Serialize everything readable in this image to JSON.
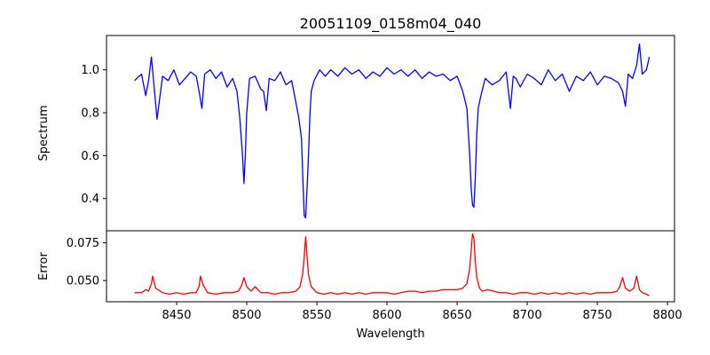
{
  "chart_data": [
    {
      "type": "line",
      "title": "20051109_0158m04_040",
      "xlabel": "",
      "ylabel": "Spectrum",
      "xlim": [
        8400,
        8805
      ],
      "ylim": [
        0.25,
        1.16
      ],
      "yticks": [
        0.4,
        0.6,
        0.8,
        1.0
      ],
      "ytick_labels": [
        "0.4",
        "0.6",
        "0.8",
        "1.0"
      ],
      "color": "#0000ff",
      "series": [
        {
          "x": [
            8420,
            8425,
            8428,
            8430,
            8432,
            8434,
            8436,
            8440,
            8444,
            8448,
            8452,
            8456,
            8460,
            8464,
            8466,
            8468,
            8470,
            8474,
            8478,
            8482,
            8486,
            8490,
            8493,
            8495,
            8497,
            8498,
            8499,
            8500,
            8502,
            8506,
            8510,
            8512,
            8514,
            8516,
            8520,
            8524,
            8528,
            8532,
            8535,
            8537,
            8539,
            8540,
            8541,
            8542,
            8543,
            8544,
            8545,
            8546,
            8548,
            8552,
            8556,
            8560,
            8565,
            8570,
            8575,
            8580,
            8585,
            8590,
            8595,
            8600,
            8605,
            8610,
            8615,
            8620,
            8625,
            8630,
            8635,
            8640,
            8645,
            8650,
            8654,
            8657,
            8659,
            8660,
            8661,
            8662,
            8663,
            8664,
            8665,
            8667,
            8670,
            8675,
            8680,
            8685,
            8688,
            8690,
            8692,
            8695,
            8700,
            8705,
            8710,
            8715,
            8720,
            8725,
            8730,
            8735,
            8740,
            8745,
            8750,
            8755,
            8760,
            8765,
            8768,
            8770,
            8772,
            8775,
            8778,
            8780,
            8782,
            8785,
            8787
          ],
          "y": [
            0.95,
            0.98,
            0.88,
            0.95,
            1.06,
            0.92,
            0.77,
            0.97,
            0.95,
            1.0,
            0.93,
            0.96,
            0.99,
            0.97,
            0.9,
            0.82,
            0.98,
            1.0,
            0.96,
            0.99,
            0.92,
            0.96,
            0.9,
            0.78,
            0.6,
            0.47,
            0.6,
            0.8,
            0.96,
            0.97,
            0.91,
            0.9,
            0.81,
            0.96,
            0.95,
            0.99,
            0.93,
            0.95,
            0.85,
            0.78,
            0.68,
            0.5,
            0.32,
            0.31,
            0.45,
            0.6,
            0.78,
            0.9,
            0.95,
            1.0,
            0.97,
            1.0,
            0.97,
            1.01,
            0.98,
            1.0,
            0.96,
            0.99,
            0.97,
            1.01,
            0.98,
            1.0,
            0.97,
            1.0,
            0.96,
            0.99,
            0.97,
            0.98,
            0.95,
            0.97,
            0.9,
            0.82,
            0.6,
            0.45,
            0.37,
            0.36,
            0.5,
            0.7,
            0.82,
            0.88,
            0.96,
            0.93,
            0.95,
            0.99,
            0.82,
            0.97,
            0.96,
            0.92,
            0.98,
            0.96,
            0.93,
            1.0,
            0.95,
            0.98,
            0.9,
            0.97,
            0.95,
            0.99,
            0.93,
            0.97,
            0.96,
            0.94,
            0.9,
            0.83,
            0.98,
            0.96,
            1.02,
            1.12,
            0.98,
            1.0,
            1.06
          ]
        }
      ]
    },
    {
      "type": "line",
      "title": "",
      "xlabel": "Wavelength",
      "ylabel": "Error",
      "xlim": [
        8400,
        8805
      ],
      "ylim": [
        0.036,
        0.083
      ],
      "xticks": [
        8450,
        8500,
        8550,
        8600,
        8650,
        8700,
        8750,
        8800
      ],
      "xtick_labels": [
        "8450",
        "8500",
        "8550",
        "8600",
        "8650",
        "8700",
        "8750",
        "8800"
      ],
      "yticks": [
        0.05,
        0.075
      ],
      "ytick_labels": [
        "0.050",
        "0.075"
      ],
      "color": "#ff0000",
      "series": [
        {
          "x": [
            8420,
            8425,
            8428,
            8430,
            8432,
            8433,
            8435,
            8440,
            8445,
            8450,
            8455,
            8460,
            8464,
            8466,
            8467,
            8469,
            8472,
            8478,
            8484,
            8490,
            8494,
            8496,
            8498,
            8500,
            8503,
            8506,
            8510,
            8515,
            8520,
            8525,
            8530,
            8535,
            8538,
            8540,
            8541,
            8542,
            8543,
            8544,
            8546,
            8550,
            8555,
            8560,
            8565,
            8570,
            8575,
            8580,
            8585,
            8590,
            8595,
            8600,
            8605,
            8610,
            8615,
            8620,
            8625,
            8630,
            8635,
            8640,
            8645,
            8650,
            8654,
            8657,
            8659,
            8660,
            8661,
            8662,
            8663,
            8664,
            8666,
            8668,
            8672,
            8676,
            8680,
            8685,
            8690,
            8695,
            8700,
            8705,
            8710,
            8715,
            8720,
            8725,
            8730,
            8735,
            8740,
            8745,
            8750,
            8755,
            8760,
            8764,
            8766,
            8768,
            8770,
            8773,
            8776,
            8778,
            8780,
            8782,
            8785,
            8787
          ],
          "y": [
            0.042,
            0.042,
            0.044,
            0.043,
            0.048,
            0.053,
            0.045,
            0.042,
            0.041,
            0.042,
            0.041,
            0.042,
            0.042,
            0.046,
            0.053,
            0.047,
            0.042,
            0.041,
            0.042,
            0.042,
            0.043,
            0.046,
            0.052,
            0.046,
            0.043,
            0.046,
            0.042,
            0.042,
            0.041,
            0.042,
            0.042,
            0.043,
            0.046,
            0.055,
            0.066,
            0.079,
            0.066,
            0.054,
            0.046,
            0.042,
            0.041,
            0.042,
            0.041,
            0.042,
            0.041,
            0.042,
            0.041,
            0.042,
            0.042,
            0.042,
            0.041,
            0.042,
            0.043,
            0.043,
            0.042,
            0.043,
            0.043,
            0.044,
            0.044,
            0.044,
            0.045,
            0.048,
            0.058,
            0.07,
            0.081,
            0.078,
            0.062,
            0.052,
            0.045,
            0.043,
            0.044,
            0.043,
            0.042,
            0.042,
            0.041,
            0.042,
            0.042,
            0.041,
            0.042,
            0.041,
            0.042,
            0.041,
            0.042,
            0.041,
            0.042,
            0.041,
            0.042,
            0.042,
            0.042,
            0.043,
            0.046,
            0.052,
            0.045,
            0.043,
            0.045,
            0.053,
            0.044,
            0.042,
            0.041,
            0.04
          ]
        }
      ]
    }
  ]
}
